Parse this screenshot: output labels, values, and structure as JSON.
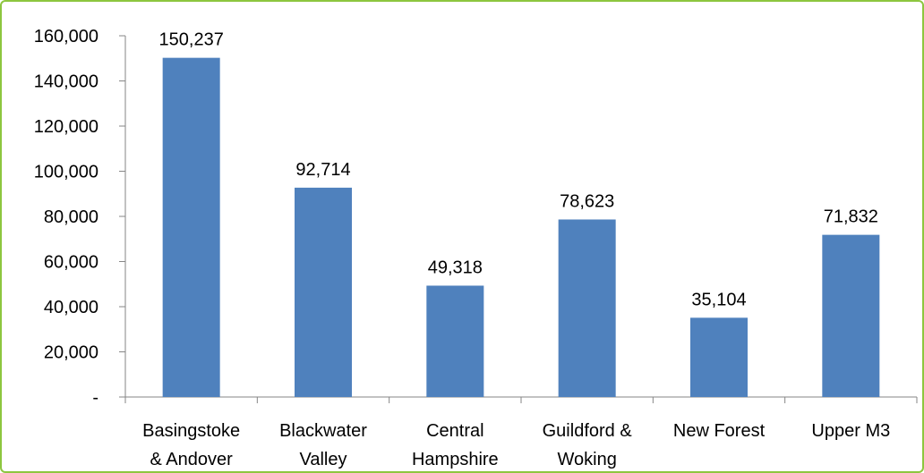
{
  "chart_data": {
    "type": "bar",
    "categories": [
      [
        "Basingstoke",
        "& Andover"
      ],
      [
        "Blackwater",
        "Valley"
      ],
      [
        "Central",
        "Hampshire"
      ],
      [
        "Guildford &",
        "Woking"
      ],
      [
        "New Forest"
      ],
      [
        "Upper M3"
      ]
    ],
    "values": [
      150237,
      92714,
      49318,
      78623,
      35104,
      71832
    ],
    "data_labels": [
      "150,237",
      "92,714",
      "49,318",
      "78,623",
      "35,104",
      "71,832"
    ],
    "yticks": [
      0,
      20000,
      40000,
      60000,
      80000,
      100000,
      120000,
      140000,
      160000
    ],
    "ytick_labels": [
      "-",
      "20,000",
      "40,000",
      "60,000",
      "80,000",
      "100,000",
      "120,000",
      "140,000",
      "160,000"
    ],
    "ylim": [
      0,
      160000
    ],
    "bar_color": "#4f81bd",
    "border_color": "#8dc63f",
    "grid": false,
    "legend": "none"
  }
}
